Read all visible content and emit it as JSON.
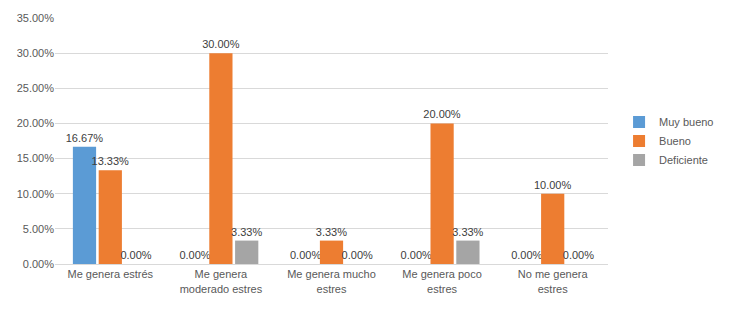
{
  "chart_data": {
    "type": "bar",
    "categories": [
      "Me genera estrés",
      "Me genera moderado estres",
      "Me genera mucho estres",
      "Me genera poco estres",
      "No me genera estres"
    ],
    "series": [
      {
        "name": "Muy bueno",
        "color": "#5b9bd5",
        "values": [
          16.67,
          0,
          0,
          0,
          0
        ],
        "value_labels": [
          "16.67%",
          "0.00%",
          "0.00%",
          "0.00%",
          "0.00%"
        ]
      },
      {
        "name": "Bueno",
        "color": "#ed7d31",
        "values": [
          13.33,
          30,
          3.33,
          20,
          10
        ],
        "value_labels": [
          "13.33%",
          "30.00%",
          "3.33%",
          "20.00%",
          "10.00%"
        ]
      },
      {
        "name": "Deficiente",
        "color": "#a5a5a5",
        "values": [
          0,
          3.33,
          0,
          3.33,
          0
        ],
        "value_labels": [
          "0.00%",
          "3.33%",
          "0.00%",
          "3.33%",
          "0.00%"
        ]
      }
    ],
    "ylim": [
      0,
      35
    ],
    "yticks": [
      {
        "value": 0,
        "label": "0.00%"
      },
      {
        "value": 5,
        "label": "5.00%"
      },
      {
        "value": 10,
        "label": "10.00%"
      },
      {
        "value": 15,
        "label": "15.00%"
      },
      {
        "value": 20,
        "label": "20.00%"
      },
      {
        "value": 25,
        "label": "25.00%"
      },
      {
        "value": 30,
        "label": "30.00%"
      },
      {
        "value": 35,
        "label": "35.00%"
      }
    ],
    "grid": true,
    "legend": "right",
    "data_labels": true
  }
}
